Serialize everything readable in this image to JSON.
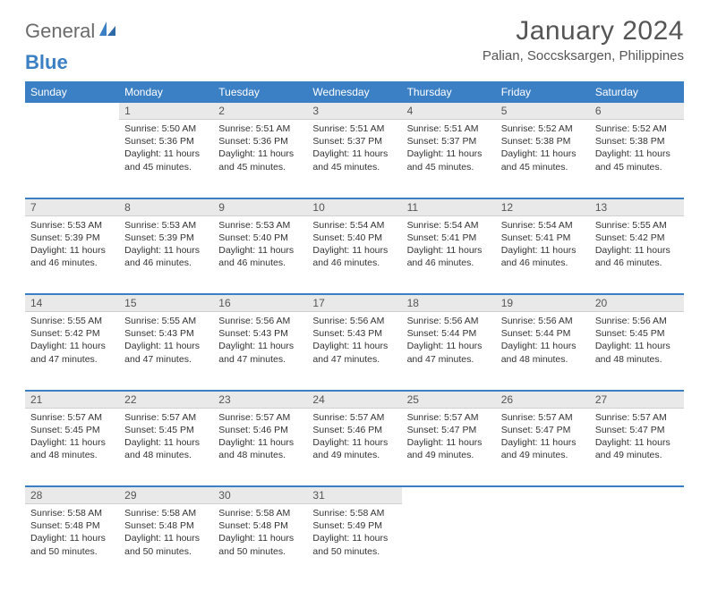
{
  "brand": {
    "part1": "General",
    "part2": "Blue"
  },
  "title": "January 2024",
  "location": "Palian, Soccsksargen, Philippines",
  "colors": {
    "header_bg": "#3b7fc4",
    "header_text": "#ffffff",
    "daynum_bg": "#e9e9e9",
    "text": "#333333",
    "rule": "#3b7fc4"
  },
  "typography": {
    "title_fontsize": 30,
    "location_fontsize": 15,
    "weekday_fontsize": 12,
    "daynum_fontsize": 12,
    "body_fontsize": 10.5
  },
  "weekdays": [
    "Sunday",
    "Monday",
    "Tuesday",
    "Wednesday",
    "Thursday",
    "Friday",
    "Saturday"
  ],
  "weeks": [
    [
      null,
      {
        "n": "1",
        "sr": "Sunrise: 5:50 AM",
        "ss": "Sunset: 5:36 PM",
        "d1": "Daylight: 11 hours",
        "d2": "and 45 minutes."
      },
      {
        "n": "2",
        "sr": "Sunrise: 5:51 AM",
        "ss": "Sunset: 5:36 PM",
        "d1": "Daylight: 11 hours",
        "d2": "and 45 minutes."
      },
      {
        "n": "3",
        "sr": "Sunrise: 5:51 AM",
        "ss": "Sunset: 5:37 PM",
        "d1": "Daylight: 11 hours",
        "d2": "and 45 minutes."
      },
      {
        "n": "4",
        "sr": "Sunrise: 5:51 AM",
        "ss": "Sunset: 5:37 PM",
        "d1": "Daylight: 11 hours",
        "d2": "and 45 minutes."
      },
      {
        "n": "5",
        "sr": "Sunrise: 5:52 AM",
        "ss": "Sunset: 5:38 PM",
        "d1": "Daylight: 11 hours",
        "d2": "and 45 minutes."
      },
      {
        "n": "6",
        "sr": "Sunrise: 5:52 AM",
        "ss": "Sunset: 5:38 PM",
        "d1": "Daylight: 11 hours",
        "d2": "and 45 minutes."
      }
    ],
    [
      {
        "n": "7",
        "sr": "Sunrise: 5:53 AM",
        "ss": "Sunset: 5:39 PM",
        "d1": "Daylight: 11 hours",
        "d2": "and 46 minutes."
      },
      {
        "n": "8",
        "sr": "Sunrise: 5:53 AM",
        "ss": "Sunset: 5:39 PM",
        "d1": "Daylight: 11 hours",
        "d2": "and 46 minutes."
      },
      {
        "n": "9",
        "sr": "Sunrise: 5:53 AM",
        "ss": "Sunset: 5:40 PM",
        "d1": "Daylight: 11 hours",
        "d2": "and 46 minutes."
      },
      {
        "n": "10",
        "sr": "Sunrise: 5:54 AM",
        "ss": "Sunset: 5:40 PM",
        "d1": "Daylight: 11 hours",
        "d2": "and 46 minutes."
      },
      {
        "n": "11",
        "sr": "Sunrise: 5:54 AM",
        "ss": "Sunset: 5:41 PM",
        "d1": "Daylight: 11 hours",
        "d2": "and 46 minutes."
      },
      {
        "n": "12",
        "sr": "Sunrise: 5:54 AM",
        "ss": "Sunset: 5:41 PM",
        "d1": "Daylight: 11 hours",
        "d2": "and 46 minutes."
      },
      {
        "n": "13",
        "sr": "Sunrise: 5:55 AM",
        "ss": "Sunset: 5:42 PM",
        "d1": "Daylight: 11 hours",
        "d2": "and 46 minutes."
      }
    ],
    [
      {
        "n": "14",
        "sr": "Sunrise: 5:55 AM",
        "ss": "Sunset: 5:42 PM",
        "d1": "Daylight: 11 hours",
        "d2": "and 47 minutes."
      },
      {
        "n": "15",
        "sr": "Sunrise: 5:55 AM",
        "ss": "Sunset: 5:43 PM",
        "d1": "Daylight: 11 hours",
        "d2": "and 47 minutes."
      },
      {
        "n": "16",
        "sr": "Sunrise: 5:56 AM",
        "ss": "Sunset: 5:43 PM",
        "d1": "Daylight: 11 hours",
        "d2": "and 47 minutes."
      },
      {
        "n": "17",
        "sr": "Sunrise: 5:56 AM",
        "ss": "Sunset: 5:43 PM",
        "d1": "Daylight: 11 hours",
        "d2": "and 47 minutes."
      },
      {
        "n": "18",
        "sr": "Sunrise: 5:56 AM",
        "ss": "Sunset: 5:44 PM",
        "d1": "Daylight: 11 hours",
        "d2": "and 47 minutes."
      },
      {
        "n": "19",
        "sr": "Sunrise: 5:56 AM",
        "ss": "Sunset: 5:44 PM",
        "d1": "Daylight: 11 hours",
        "d2": "and 48 minutes."
      },
      {
        "n": "20",
        "sr": "Sunrise: 5:56 AM",
        "ss": "Sunset: 5:45 PM",
        "d1": "Daylight: 11 hours",
        "d2": "and 48 minutes."
      }
    ],
    [
      {
        "n": "21",
        "sr": "Sunrise: 5:57 AM",
        "ss": "Sunset: 5:45 PM",
        "d1": "Daylight: 11 hours",
        "d2": "and 48 minutes."
      },
      {
        "n": "22",
        "sr": "Sunrise: 5:57 AM",
        "ss": "Sunset: 5:45 PM",
        "d1": "Daylight: 11 hours",
        "d2": "and 48 minutes."
      },
      {
        "n": "23",
        "sr": "Sunrise: 5:57 AM",
        "ss": "Sunset: 5:46 PM",
        "d1": "Daylight: 11 hours",
        "d2": "and 48 minutes."
      },
      {
        "n": "24",
        "sr": "Sunrise: 5:57 AM",
        "ss": "Sunset: 5:46 PM",
        "d1": "Daylight: 11 hours",
        "d2": "and 49 minutes."
      },
      {
        "n": "25",
        "sr": "Sunrise: 5:57 AM",
        "ss": "Sunset: 5:47 PM",
        "d1": "Daylight: 11 hours",
        "d2": "and 49 minutes."
      },
      {
        "n": "26",
        "sr": "Sunrise: 5:57 AM",
        "ss": "Sunset: 5:47 PM",
        "d1": "Daylight: 11 hours",
        "d2": "and 49 minutes."
      },
      {
        "n": "27",
        "sr": "Sunrise: 5:57 AM",
        "ss": "Sunset: 5:47 PM",
        "d1": "Daylight: 11 hours",
        "d2": "and 49 minutes."
      }
    ],
    [
      {
        "n": "28",
        "sr": "Sunrise: 5:58 AM",
        "ss": "Sunset: 5:48 PM",
        "d1": "Daylight: 11 hours",
        "d2": "and 50 minutes."
      },
      {
        "n": "29",
        "sr": "Sunrise: 5:58 AM",
        "ss": "Sunset: 5:48 PM",
        "d1": "Daylight: 11 hours",
        "d2": "and 50 minutes."
      },
      {
        "n": "30",
        "sr": "Sunrise: 5:58 AM",
        "ss": "Sunset: 5:48 PM",
        "d1": "Daylight: 11 hours",
        "d2": "and 50 minutes."
      },
      {
        "n": "31",
        "sr": "Sunrise: 5:58 AM",
        "ss": "Sunset: 5:49 PM",
        "d1": "Daylight: 11 hours",
        "d2": "and 50 minutes."
      },
      null,
      null,
      null
    ]
  ]
}
